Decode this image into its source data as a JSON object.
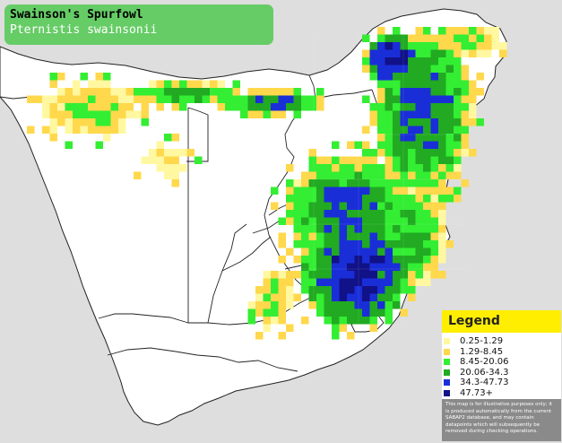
{
  "title": {
    "common_name": "Swainson's Spurfowl",
    "scientific_name": "Pternistis swainsonii"
  },
  "legend": {
    "heading": "Legend",
    "items": [
      {
        "label": "0.25-1.29",
        "color": "#fff8a0"
      },
      {
        "label": "1.29-8.45",
        "color": "#ffd84c"
      },
      {
        "label": "8.45-20.06",
        "color": "#33ee33"
      },
      {
        "label": "20.06-34.3",
        "color": "#22aa22"
      },
      {
        "label": "34.3-47.73",
        "color": "#1a2ed8"
      },
      {
        "label": "47.73+",
        "color": "#111188"
      }
    ],
    "disclaimer": "This map is for illustrative purposes only; it is produced automatically from the current SABAP2 database, and may contain datapoints which will subsequently be removed during checking operations."
  },
  "colors": {
    "sea": "#dedede",
    "land": "#ffffff",
    "border": "#222222"
  }
}
